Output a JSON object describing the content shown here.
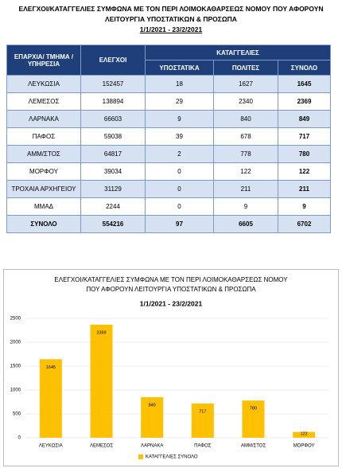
{
  "header": {
    "title_lines": [
      "ΕΛΕΓΧΟΙ/ΚΑΤΑΓΓΕΛΙΕΣ ΣΥΜΦΩΝΑ ΜΕ ΤΟΝ ΠΕΡΙ ΛΟΙΜΟΚΑΘΑΡΣΕΩΣ ΝΟΜΟΥ ΠΟΥ ΑΦΟΡΟΥΝ",
      "ΛΕΙΤΟΥΡΓΙΑ ΥΠΟΣΤΑΤΙΚΩΝ & ΠΡΟΣΩΠΑ",
      "1/1/2021 - 23/2/2021"
    ]
  },
  "table": {
    "header": {
      "region": "ΕΠΑΡΧΙΑ/ ΤΜΗΜΑ / ΥΠΗΡΕΣΙΑ",
      "checks": "ΕΛΕΓΧΟΙ",
      "complaints": "ΚΑΤΑΓΓΕΛΙΕΣ",
      "sub": [
        "ΥΠΟΣΤΑΤΙΚΑ",
        "ΠΟΛΙΤΕΣ",
        "ΣΥΝΟΛΟ"
      ]
    },
    "rows": [
      [
        "ΛΕΥΚΩΣΙΑ",
        152457,
        18,
        1627,
        1645
      ],
      [
        "ΛΕΜΕΣΟΣ",
        138894,
        29,
        2340,
        2369
      ],
      [
        "ΛΑΡΝΑΚΑ",
        66603,
        9,
        840,
        849
      ],
      [
        "ΠΑΦΟΣ",
        59038,
        39,
        678,
        717
      ],
      [
        "ΑΜΜ/ΣΤΟΣ",
        64817,
        2,
        778,
        780
      ],
      [
        "ΜΟΡΦΟΥ",
        39034,
        0,
        122,
        122
      ],
      [
        "ΤΡΟΧΑΙΑ ΑΡΧΗΓΕΙΟΥ",
        31129,
        0,
        211,
        211
      ],
      [
        "ΜΜΑΔ",
        2244,
        0,
        9,
        9
      ],
      [
        "ΣΥΝΟΛΟ",
        554216,
        97,
        6605,
        6702
      ]
    ]
  },
  "chart_data": {
    "type": "bar",
    "title": [
      "ΕΛΕΓΧΟΙ/ΚΑΤΑΓΓΕΛΙΕΣ ΣΥΜΦΩΝΑ ΜΕ ΤΟΝ ΠΕΡΙ ΛΟΙΜΟΚΑΘΑΡΣΕΩΣ ΝΟΜΟΥ",
      "ΠΟΥ ΑΦΟΡΟΥΝ ΛΕΙΤΟΥΡΓΙΑ ΥΠΟΣΤΑΤΙΚΩΝ & ΠΡΟΣΩΠΑ"
    ],
    "subtitle": "1/1/2021 - 23/2/2021",
    "categories": [
      "ΛΕΥΚΩΣΙΑ",
      "ΛΕΜΕΣΟΣ",
      "ΛΑΡΝΑΚΑ",
      "ΠΑΦΟΣ",
      "ΑΜΜ/ΣΤΟΣ",
      "ΜΟΡΦΟΥ"
    ],
    "series": [
      {
        "name": "ΚΑΤΑΓΓΕΛΙΕΣ ΣΥΝΟΛΟ",
        "color": "#ffc000",
        "values": [
          1645,
          2369,
          849,
          717,
          780,
          122
        ]
      }
    ],
    "ylim": [
      0,
      2500
    ],
    "yticks": [
      0,
      500,
      1000,
      1500,
      2000,
      2500
    ],
    "grid": true,
    "legend": "bottom"
  }
}
